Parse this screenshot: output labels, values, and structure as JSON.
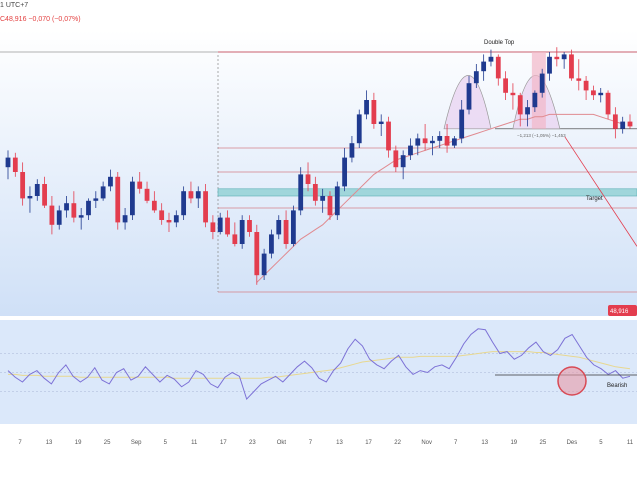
{
  "header": {
    "title_fragment": "1 UTC+7",
    "change_fragment": "C48,916 −0,070 (−0,07%)"
  },
  "colors": {
    "up": "#1f3a8f",
    "down": "#e33d4e",
    "panel_bg_top": "#ffffff",
    "panel_bg_bottom": "#cfe0f7",
    "rsi_line": "#7d72d6",
    "rsi_ma": "#e8d890",
    "target_zone": "#8fd0d3",
    "resistance": "#d4808a",
    "pattern_fill": "#e9d3f0",
    "circle": "#d84a55"
  },
  "annotations": {
    "pattern_label": "Double Top",
    "target_label": "Target",
    "bearish_label": "Bearish",
    "measure_label": "−1,213 (−1,05%) −1,453",
    "price_badge": "48,916"
  },
  "x_axis_ticks": [
    "7",
    "13",
    "19",
    "25",
    "Sep",
    "5",
    "11",
    "17",
    "23",
    "Okt",
    "7",
    "13",
    "17",
    "22",
    "Nov",
    "7",
    "13",
    "19",
    "25",
    "Des",
    "5",
    "11"
  ],
  "chart_data": [
    {
      "type": "candlestick",
      "title": "",
      "x_labels": [
        "7",
        "13",
        "19",
        "25",
        "Sep",
        "5",
        "11",
        "17",
        "23",
        "Okt",
        "7",
        "13",
        "17",
        "22",
        "Nov",
        "7",
        "13",
        "19",
        "25",
        "Des",
        "5",
        "11"
      ],
      "ylim": [
        0,
        100
      ],
      "candles": [
        {
          "o": 48,
          "h": 55,
          "l": 43,
          "c": 52
        },
        {
          "o": 52,
          "h": 54,
          "l": 44,
          "c": 46
        },
        {
          "o": 46,
          "h": 50,
          "l": 32,
          "c": 35
        },
        {
          "o": 35,
          "h": 40,
          "l": 29,
          "c": 36
        },
        {
          "o": 36,
          "h": 43,
          "l": 34,
          "c": 41
        },
        {
          "o": 41,
          "h": 44,
          "l": 31,
          "c": 32
        },
        {
          "o": 32,
          "h": 36,
          "l": 20,
          "c": 24
        },
        {
          "o": 24,
          "h": 32,
          "l": 22,
          "c": 30
        },
        {
          "o": 30,
          "h": 36,
          "l": 27,
          "c": 33
        },
        {
          "o": 33,
          "h": 38,
          "l": 25,
          "c": 27
        },
        {
          "o": 27,
          "h": 31,
          "l": 22,
          "c": 28
        },
        {
          "o": 28,
          "h": 35,
          "l": 26,
          "c": 34
        },
        {
          "o": 34,
          "h": 38,
          "l": 31,
          "c": 35
        },
        {
          "o": 35,
          "h": 42,
          "l": 34,
          "c": 40
        },
        {
          "o": 40,
          "h": 47,
          "l": 38,
          "c": 44
        },
        {
          "o": 44,
          "h": 46,
          "l": 22,
          "c": 25
        },
        {
          "o": 25,
          "h": 31,
          "l": 22,
          "c": 28
        },
        {
          "o": 28,
          "h": 44,
          "l": 26,
          "c": 42
        },
        {
          "o": 42,
          "h": 46,
          "l": 37,
          "c": 39
        },
        {
          "o": 39,
          "h": 42,
          "l": 33,
          "c": 34
        },
        {
          "o": 34,
          "h": 38,
          "l": 29,
          "c": 30
        },
        {
          "o": 30,
          "h": 33,
          "l": 24,
          "c": 26
        },
        {
          "o": 26,
          "h": 29,
          "l": 21,
          "c": 25
        },
        {
          "o": 25,
          "h": 30,
          "l": 23,
          "c": 28
        },
        {
          "o": 28,
          "h": 40,
          "l": 26,
          "c": 38
        },
        {
          "o": 38,
          "h": 42,
          "l": 33,
          "c": 35
        },
        {
          "o": 35,
          "h": 40,
          "l": 31,
          "c": 38
        },
        {
          "o": 38,
          "h": 41,
          "l": 23,
          "c": 25
        },
        {
          "o": 25,
          "h": 28,
          "l": 18,
          "c": 21
        },
        {
          "o": 21,
          "h": 29,
          "l": 20,
          "c": 27
        },
        {
          "o": 27,
          "h": 30,
          "l": 19,
          "c": 20
        },
        {
          "o": 20,
          "h": 25,
          "l": 15,
          "c": 16
        },
        {
          "o": 16,
          "h": 28,
          "l": 14,
          "c": 26
        },
        {
          "o": 26,
          "h": 28,
          "l": 19,
          "c": 21
        },
        {
          "o": 21,
          "h": 24,
          "l": -1,
          "c": 3
        },
        {
          "o": 3,
          "h": 14,
          "l": 1,
          "c": 12
        },
        {
          "o": 12,
          "h": 22,
          "l": 10,
          "c": 20
        },
        {
          "o": 20,
          "h": 28,
          "l": 18,
          "c": 26
        },
        {
          "o": 26,
          "h": 30,
          "l": 14,
          "c": 16
        },
        {
          "o": 16,
          "h": 32,
          "l": 15,
          "c": 30
        },
        {
          "o": 30,
          "h": 48,
          "l": 28,
          "c": 45
        },
        {
          "o": 45,
          "h": 50,
          "l": 38,
          "c": 41
        },
        {
          "o": 41,
          "h": 44,
          "l": 32,
          "c": 34
        },
        {
          "o": 34,
          "h": 39,
          "l": 29,
          "c": 36
        },
        {
          "o": 36,
          "h": 38,
          "l": 26,
          "c": 28
        },
        {
          "o": 28,
          "h": 42,
          "l": 26,
          "c": 40
        },
        {
          "o": 40,
          "h": 56,
          "l": 38,
          "c": 52
        },
        {
          "o": 52,
          "h": 61,
          "l": 50,
          "c": 58
        },
        {
          "o": 58,
          "h": 72,
          "l": 56,
          "c": 70
        },
        {
          "o": 70,
          "h": 80,
          "l": 68,
          "c": 76
        },
        {
          "o": 76,
          "h": 79,
          "l": 64,
          "c": 66
        },
        {
          "o": 66,
          "h": 70,
          "l": 61,
          "c": 67
        },
        {
          "o": 67,
          "h": 69,
          "l": 52,
          "c": 55
        },
        {
          "o": 55,
          "h": 57,
          "l": 46,
          "c": 48
        },
        {
          "o": 48,
          "h": 55,
          "l": 43,
          "c": 53
        },
        {
          "o": 53,
          "h": 60,
          "l": 51,
          "c": 57
        },
        {
          "o": 57,
          "h": 62,
          "l": 53,
          "c": 60
        },
        {
          "o": 60,
          "h": 66,
          "l": 55,
          "c": 58
        },
        {
          "o": 58,
          "h": 61,
          "l": 53,
          "c": 59
        },
        {
          "o": 59,
          "h": 63,
          "l": 56,
          "c": 61
        },
        {
          "o": 61,
          "h": 66,
          "l": 54,
          "c": 57
        },
        {
          "o": 57,
          "h": 61,
          "l": 56,
          "c": 60
        },
        {
          "o": 60,
          "h": 76,
          "l": 58,
          "c": 72
        },
        {
          "o": 72,
          "h": 86,
          "l": 70,
          "c": 83
        },
        {
          "o": 83,
          "h": 91,
          "l": 81,
          "c": 88
        },
        {
          "o": 88,
          "h": 95,
          "l": 84,
          "c": 92
        },
        {
          "o": 92,
          "h": 97,
          "l": 90,
          "c": 94
        },
        {
          "o": 94,
          "h": 95,
          "l": 82,
          "c": 85
        },
        {
          "o": 85,
          "h": 88,
          "l": 76,
          "c": 79
        },
        {
          "o": 79,
          "h": 83,
          "l": 72,
          "c": 78
        },
        {
          "o": 78,
          "h": 79,
          "l": 65,
          "c": 70
        },
        {
          "o": 70,
          "h": 76,
          "l": 65,
          "c": 73
        },
        {
          "o": 73,
          "h": 80,
          "l": 71,
          "c": 79
        },
        {
          "o": 79,
          "h": 89,
          "l": 77,
          "c": 87
        },
        {
          "o": 87,
          "h": 96,
          "l": 84,
          "c": 94
        },
        {
          "o": 94,
          "h": 98,
          "l": 90,
          "c": 93
        },
        {
          "o": 93,
          "h": 96,
          "l": 89,
          "c": 95
        },
        {
          "o": 95,
          "h": 97,
          "l": 84,
          "c": 85
        },
        {
          "o": 85,
          "h": 93,
          "l": 80,
          "c": 84
        },
        {
          "o": 84,
          "h": 86,
          "l": 76,
          "c": 80
        },
        {
          "o": 80,
          "h": 82,
          "l": 76,
          "c": 78
        },
        {
          "o": 78,
          "h": 81,
          "l": 75,
          "c": 79
        },
        {
          "o": 79,
          "h": 80,
          "l": 68,
          "c": 70
        },
        {
          "o": 70,
          "h": 73,
          "l": 60,
          "c": 64
        },
        {
          "o": 64,
          "h": 69,
          "l": 62,
          "c": 67
        },
        {
          "o": 67,
          "h": 70,
          "l": 64,
          "c": 65
        }
      ],
      "price_levels": [
        {
          "name": "top-resistance",
          "value": 96
        },
        {
          "name": "neckline",
          "value": 64
        },
        {
          "name": "level-1",
          "value": 56
        },
        {
          "name": "level-2",
          "value": 46
        },
        {
          "name": "target-zone",
          "value": [
            36,
            39
          ]
        },
        {
          "name": "level-3",
          "value": 31
        },
        {
          "name": "bottom",
          "value": -4
        }
      ],
      "moving_average": [
        null,
        null,
        null,
        null,
        null,
        null,
        null,
        null,
        null,
        null,
        null,
        null,
        null,
        null,
        null,
        null,
        null,
        null,
        null,
        null,
        null,
        null,
        null,
        null,
        null,
        null,
        null,
        null,
        null,
        null,
        null,
        null,
        null,
        null,
        0,
        3,
        6,
        9,
        12,
        15,
        18,
        20,
        22,
        24,
        27,
        30,
        33,
        36,
        39,
        42,
        45,
        47,
        49,
        51,
        52,
        53,
        54,
        55,
        56,
        57,
        58,
        59,
        60,
        61,
        62,
        63,
        64,
        65,
        66,
        67,
        68,
        68,
        69,
        69,
        70,
        70,
        70,
        70,
        70,
        70,
        70,
        69,
        68,
        67,
        66
      ],
      "patterns": [
        {
          "label": "Double Top",
          "peaks": [
            63,
            72
          ],
          "neckline": 64
        }
      ]
    },
    {
      "type": "line",
      "title": "",
      "series": [
        {
          "values": [
            52,
            45,
            40,
            48,
            52,
            44,
            38,
            50,
            58,
            46,
            40,
            45,
            55,
            42,
            38,
            50,
            54,
            42,
            46,
            56,
            48,
            40,
            47,
            43,
            35,
            40,
            52,
            48,
            38,
            34,
            45,
            50,
            46,
            22,
            30,
            38,
            42,
            46,
            40,
            48,
            56,
            62,
            55,
            44,
            40,
            52,
            60,
            75,
            85,
            78,
            64,
            58,
            54,
            62,
            68,
            56,
            48,
            52,
            50,
            56,
            58,
            54,
            66,
            80,
            90,
            96,
            95,
            82,
            70,
            72,
            64,
            68,
            76,
            82,
            72,
            68,
            74,
            86,
            90,
            78,
            66,
            58,
            54,
            48,
            52,
            44,
            46
          ]
        },
        {
          "values": [
            48,
            48,
            47,
            47,
            47,
            46,
            46,
            46,
            46,
            46,
            45,
            45,
            45,
            45,
            45,
            45,
            45,
            45,
            45,
            45,
            45,
            45,
            45,
            44,
            44,
            44,
            44,
            44,
            44,
            44,
            44,
            44,
            44,
            44,
            44,
            44,
            45,
            45,
            46,
            47,
            48,
            49,
            50,
            51,
            52,
            53,
            55,
            57,
            59,
            61,
            62,
            63,
            64,
            65,
            66,
            66,
            66,
            67,
            67,
            67,
            67,
            67,
            67,
            68,
            69,
            70,
            71,
            72,
            72,
            72,
            72,
            72,
            72,
            71,
            71,
            70,
            69,
            68,
            67,
            66,
            64,
            62,
            60,
            58,
            56,
            55,
            54
          ]
        }
      ],
      "ylim": [
        0,
        100
      ],
      "levels": [
        70,
        50,
        30
      ],
      "annotations": [
        "Bearish"
      ]
    }
  ]
}
